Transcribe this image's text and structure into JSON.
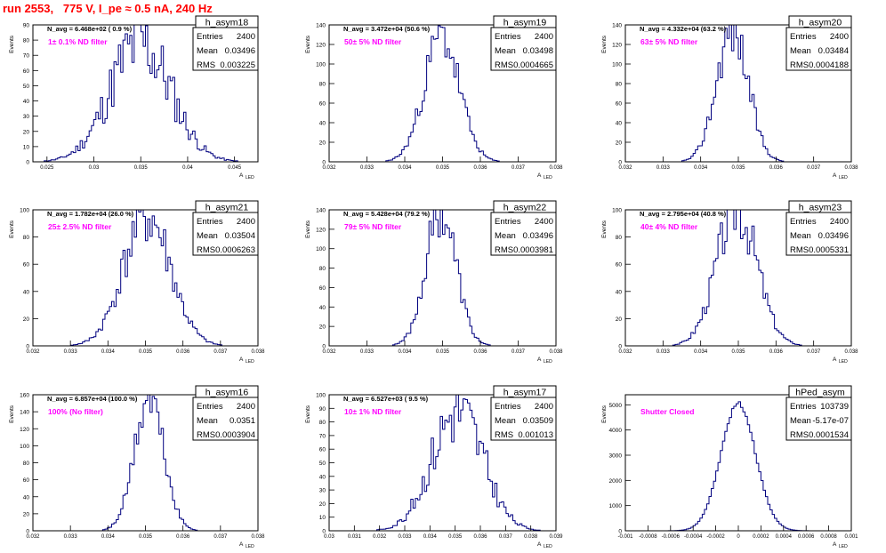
{
  "page": {
    "title": "run 2553,   775 V, I_pe ≈ 0.5 nA, 240 Hz",
    "title_color": "#ff0000",
    "hist_color": "#00007f",
    "annotation_color": "#ff00ff"
  },
  "labels": {
    "ylabel": "Events",
    "xlabel": "A",
    "xlabel_sub": "LED",
    "entries": "Entries",
    "mean": "Mean",
    "rms": "RMS"
  },
  "chart_data": [
    {
      "type": "bar",
      "name": "h_asym18",
      "navg": "N_avg = 6.468e+02 ( 0.9 %)",
      "filter": "1± 0.1% ND filter",
      "entries": "2400",
      "mean": "0.03496",
      "rms": "0.003225",
      "xmin": 0.0235,
      "xmax": 0.0475,
      "ymin": 0,
      "ymax": 90,
      "xticks": [
        0.025,
        0.03,
        0.035,
        0.04,
        0.045
      ],
      "xtick_labels": [
        "0.025",
        "0.03",
        "0.035",
        "0.04",
        "0.045"
      ],
      "yticks": [
        0,
        10,
        20,
        30,
        40,
        50,
        60,
        70,
        80,
        90
      ],
      "mu": 0.03496,
      "sigma": 0.003225,
      "peak": 78,
      "nbins": 100,
      "jitter": 0.35,
      "seed": 11
    },
    {
      "type": "bar",
      "name": "h_asym19",
      "navg": "N_avg = 3.472e+04 (50.6 %)",
      "filter": "50± 5% ND filter",
      "entries": "2400",
      "mean": "0.03498",
      "rms": "0.0004665",
      "xmin": 0.032,
      "xmax": 0.038,
      "ymin": 0,
      "ymax": 140,
      "xticks": [
        0.032,
        0.033,
        0.034,
        0.035,
        0.036,
        0.037,
        0.038
      ],
      "xtick_labels": [
        "0.032",
        "0.033",
        "0.034",
        "0.035",
        "0.036",
        "0.037",
        "0.038"
      ],
      "yticks": [
        0,
        20,
        40,
        60,
        80,
        100,
        120,
        140
      ],
      "mu": 0.03498,
      "sigma": 0.0004665,
      "peak": 128,
      "nbins": 100,
      "jitter": 0.2,
      "seed": 23
    },
    {
      "type": "bar",
      "name": "h_asym20",
      "navg": "N_avg = 4.332e+04 (63.2 %)",
      "filter": "63± 5% ND filter",
      "entries": "2400",
      "mean": "0.03484",
      "rms": "0.0004188",
      "xmin": 0.032,
      "xmax": 0.038,
      "ymin": 0,
      "ymax": 140,
      "xticks": [
        0.032,
        0.033,
        0.034,
        0.035,
        0.036,
        0.037,
        0.038
      ],
      "xtick_labels": [
        "0.032",
        "0.033",
        "0.034",
        "0.035",
        "0.036",
        "0.037",
        "0.038"
      ],
      "yticks": [
        0,
        20,
        40,
        60,
        80,
        100,
        120,
        140
      ],
      "mu": 0.03484,
      "sigma": 0.0004188,
      "peak": 136,
      "nbins": 100,
      "jitter": 0.2,
      "seed": 37
    },
    {
      "type": "bar",
      "name": "h_asym21",
      "navg": "N_avg = 1.782e+04 (26.0 %)",
      "filter": "25± 2.5% ND filter",
      "entries": "2400",
      "mean": "0.03504",
      "rms": "0.0006263",
      "xmin": 0.032,
      "xmax": 0.038,
      "ymin": 0,
      "ymax": 100,
      "xticks": [
        0.032,
        0.033,
        0.034,
        0.035,
        0.036,
        0.037,
        0.038
      ],
      "xtick_labels": [
        "0.032",
        "0.033",
        "0.034",
        "0.035",
        "0.036",
        "0.037",
        "0.038"
      ],
      "yticks": [
        0,
        20,
        40,
        60,
        80,
        100
      ],
      "mu": 0.03504,
      "sigma": 0.0006263,
      "peak": 95,
      "nbins": 100,
      "jitter": 0.25,
      "seed": 41
    },
    {
      "type": "bar",
      "name": "h_asym22",
      "navg": "N_avg = 5.428e+04 (79.2 %)",
      "filter": "79± 5% ND filter",
      "entries": "2400",
      "mean": "0.03496",
      "rms": "0.0003981",
      "xmin": 0.032,
      "xmax": 0.038,
      "ymin": 0,
      "ymax": 140,
      "xticks": [
        0.032,
        0.033,
        0.034,
        0.035,
        0.036,
        0.037,
        0.038
      ],
      "xtick_labels": [
        "0.032",
        "0.033",
        "0.034",
        "0.035",
        "0.036",
        "0.037",
        "0.038"
      ],
      "yticks": [
        0,
        20,
        40,
        60,
        80,
        100,
        120,
        140
      ],
      "mu": 0.03496,
      "sigma": 0.0003981,
      "peak": 140,
      "nbins": 100,
      "jitter": 0.2,
      "seed": 53
    },
    {
      "type": "bar",
      "name": "h_asym23",
      "navg": "N_avg = 2.795e+04 (40.8 %)",
      "filter": "40± 4% ND filter",
      "entries": "2400",
      "mean": "0.03496",
      "rms": "0.0005331",
      "xmin": 0.032,
      "xmax": 0.038,
      "ymin": 0,
      "ymax": 100,
      "xticks": [
        0.032,
        0.033,
        0.034,
        0.035,
        0.036,
        0.037,
        0.038
      ],
      "xtick_labels": [
        "0.032",
        "0.033",
        "0.034",
        "0.035",
        "0.036",
        "0.037",
        "0.038"
      ],
      "yticks": [
        0,
        20,
        40,
        60,
        80,
        100
      ],
      "mu": 0.03496,
      "sigma": 0.0005331,
      "peak": 102,
      "nbins": 100,
      "jitter": 0.22,
      "seed": 67
    },
    {
      "type": "bar",
      "name": "h_asym16",
      "navg": "N_avg = 6.857e+04 (100.0 %)",
      "filter": "100% (No filter)",
      "entries": "2400",
      "mean": "0.0351",
      "rms": "0.0003904",
      "xmin": 0.032,
      "xmax": 0.038,
      "ymin": 0,
      "ymax": 160,
      "xticks": [
        0.032,
        0.033,
        0.034,
        0.035,
        0.036,
        0.037,
        0.038
      ],
      "xtick_labels": [
        "0.032",
        "0.033",
        "0.034",
        "0.035",
        "0.036",
        "0.037",
        "0.038"
      ],
      "yticks": [
        0,
        20,
        40,
        60,
        80,
        100,
        120,
        140,
        160
      ],
      "mu": 0.0351,
      "sigma": 0.0003904,
      "peak": 155,
      "nbins": 100,
      "jitter": 0.18,
      "seed": 71
    },
    {
      "type": "bar",
      "name": "h_asym17",
      "navg": "N_avg = 6.527e+03 ( 9.5 %)",
      "filter": "10± 1% ND filter",
      "entries": "2400",
      "mean": "0.03509",
      "rms": "0.001013",
      "xmin": 0.03,
      "xmax": 0.039,
      "ymin": 0,
      "ymax": 100,
      "xticks": [
        0.03,
        0.031,
        0.032,
        0.033,
        0.034,
        0.035,
        0.036,
        0.037,
        0.038,
        0.039
      ],
      "xtick_labels": [
        "0.03",
        "0.031",
        "0.032",
        "0.033",
        "0.034",
        "0.035",
        "0.036",
        "0.037",
        "0.038",
        "0.039"
      ],
      "yticks": [
        0,
        10,
        20,
        30,
        40,
        50,
        60,
        70,
        80,
        90,
        100
      ],
      "mu": 0.03509,
      "sigma": 0.001013,
      "peak": 88,
      "nbins": 100,
      "jitter": 0.3,
      "seed": 83
    },
    {
      "type": "bar",
      "name": "hPed_asym",
      "navg": "",
      "filter": "Shutter Closed",
      "entries": "103739",
      "mean": "-5.17e-07",
      "rms": "0.0001534",
      "xmin": -0.001,
      "xmax": 0.001,
      "ymin": 0,
      "ymax": 5400,
      "xticks": [
        -0.001,
        -0.0008,
        -0.0006,
        -0.0004,
        -0.0002,
        0,
        0.0002,
        0.0004,
        0.0006,
        0.0008,
        0.001
      ],
      "xtick_labels": [
        "-0.001",
        "-0.0008",
        "-0.0006",
        "-0.0004",
        "-0.0002",
        "0",
        "0.0002",
        "0.0004",
        "0.0006",
        "0.0008",
        "0.001"
      ],
      "yticks": [
        0,
        1000,
        2000,
        3000,
        4000,
        5000
      ],
      "mu": -5.17e-07,
      "sigma": 0.0001534,
      "peak": 5050,
      "nbins": 100,
      "jitter": 0.02,
      "seed": 97
    }
  ]
}
